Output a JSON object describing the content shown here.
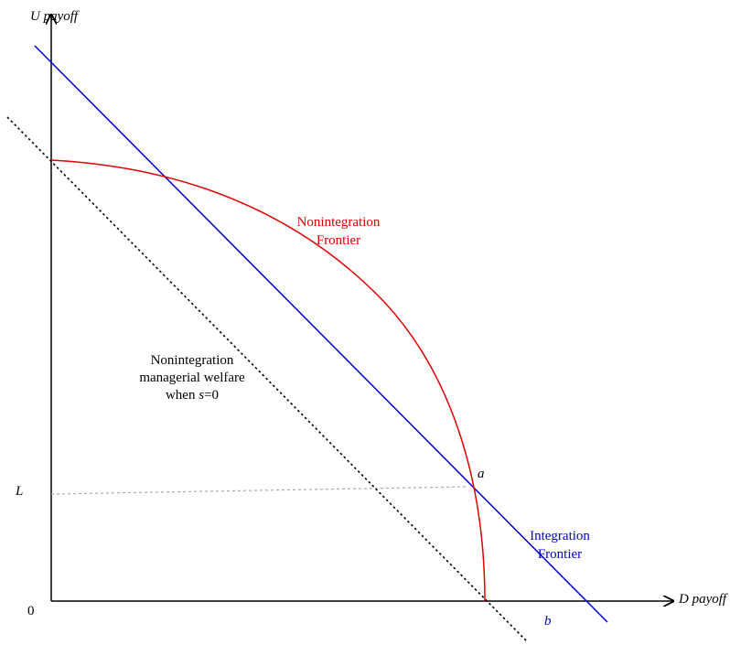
{
  "axes": {
    "y_label": "U payoff",
    "x_label": "D payoff",
    "origin": "0"
  },
  "points": {
    "L": "L",
    "a": "a",
    "b": "b"
  },
  "labels": {
    "nonintegration_frontier": [
      "Nonintegration",
      "Frontier"
    ],
    "integration_frontier": [
      "Integration",
      "Frontier"
    ],
    "managerial_welfare": {
      "lines": [
        "Nonintegration",
        "managerial welfare"
      ],
      "last_line": [
        "when ",
        "s",
        "=0"
      ]
    }
  }
}
